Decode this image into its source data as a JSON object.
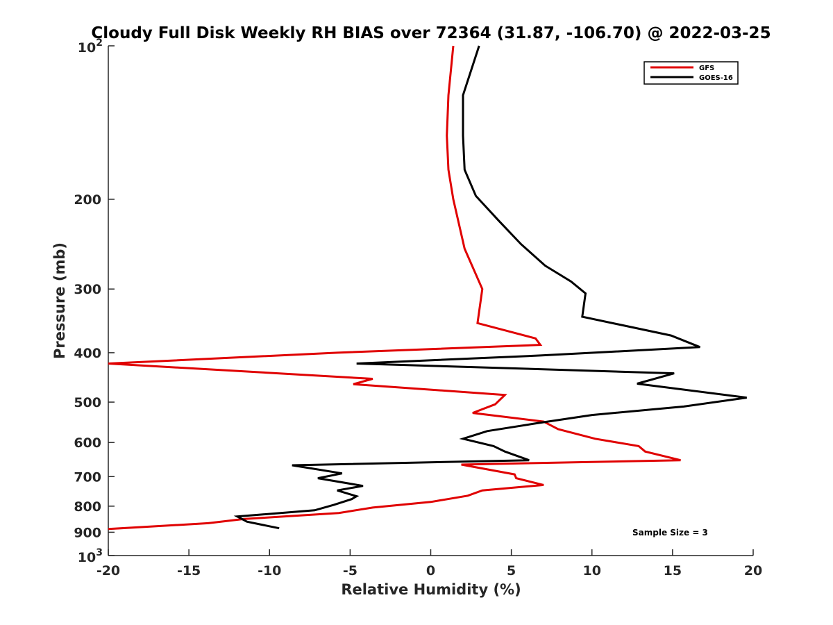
{
  "chart_data": {
    "type": "line",
    "title": "Cloudy Full Disk Weekly RH BIAS over 72364 (31.87, -106.70) @ 2022-03-25",
    "xlabel": "Relative Humidity (%)",
    "ylabel": "Pressure (mb)",
    "xlim": [
      -20,
      20
    ],
    "ylim": [
      100,
      1000
    ],
    "yscale": "log",
    "y_reversed": true,
    "x_ticks": [
      {
        "value": -20,
        "label": "-20"
      },
      {
        "value": -15,
        "label": "-15"
      },
      {
        "value": -10,
        "label": "-10"
      },
      {
        "value": -5,
        "label": "-5"
      },
      {
        "value": 0,
        "label": "0"
      },
      {
        "value": 5,
        "label": "5"
      },
      {
        "value": 10,
        "label": "10"
      },
      {
        "value": 15,
        "label": "15"
      },
      {
        "value": 20,
        "label": "20"
      }
    ],
    "y_ticks": [
      {
        "value": 100,
        "base": "10",
        "exp": "2"
      },
      {
        "value": 200,
        "label": "200"
      },
      {
        "value": 300,
        "label": "300"
      },
      {
        "value": 400,
        "label": "400"
      },
      {
        "value": 500,
        "label": "500"
      },
      {
        "value": 600,
        "label": "600"
      },
      {
        "value": 700,
        "label": "700"
      },
      {
        "value": 800,
        "label": "800"
      },
      {
        "value": 900,
        "label": "900"
      },
      {
        "value": 1000,
        "base": "10",
        "exp": "3"
      }
    ],
    "grid": false,
    "legend_position": "top-right",
    "annotation": "Sample Size = 3",
    "series": [
      {
        "name": "GFS",
        "color": "#e00000",
        "points": [
          [
            1.4,
            100
          ],
          [
            1.1,
            125
          ],
          [
            1.0,
            150
          ],
          [
            1.1,
            175
          ],
          [
            1.4,
            200
          ],
          [
            2.1,
            250
          ],
          [
            3.2,
            300
          ],
          [
            2.9,
            350
          ],
          [
            6.5,
            375
          ],
          [
            6.8,
            386
          ],
          [
            -5.8,
            400
          ],
          [
            -20.0,
            420
          ],
          [
            -3.6,
            450
          ],
          [
            -4.8,
            461
          ],
          [
            4.6,
            484
          ],
          [
            4.0,
            505
          ],
          [
            2.6,
            525
          ],
          [
            7.0,
            546
          ],
          [
            7.9,
            565
          ],
          [
            10.2,
            590
          ],
          [
            12.9,
            610
          ],
          [
            13.3,
            625
          ],
          [
            15.5,
            650
          ],
          [
            1.9,
            663
          ],
          [
            5.2,
            693
          ],
          [
            5.3,
            705
          ],
          [
            7.0,
            727
          ],
          [
            3.2,
            745
          ],
          [
            2.3,
            763
          ],
          [
            0.0,
            785
          ],
          [
            -3.6,
            805
          ],
          [
            -5.7,
            825
          ],
          [
            -11.6,
            848
          ],
          [
            -13.8,
            864
          ],
          [
            -20.0,
            887
          ]
        ]
      },
      {
        "name": "GOES-16",
        "color": "#000000",
        "points": [
          [
            3.0,
            100
          ],
          [
            2.0,
            125
          ],
          [
            2.0,
            150
          ],
          [
            2.1,
            175
          ],
          [
            2.8,
            197
          ],
          [
            4.2,
            220
          ],
          [
            5.6,
            245
          ],
          [
            7.1,
            270
          ],
          [
            8.7,
            290
          ],
          [
            9.6,
            306
          ],
          [
            9.4,
            340
          ],
          [
            14.9,
            370
          ],
          [
            16.7,
            390
          ],
          [
            6.8,
            405
          ],
          [
            -4.6,
            420
          ],
          [
            15.1,
            439
          ],
          [
            12.8,
            460
          ],
          [
            19.6,
            490
          ],
          [
            15.7,
            510
          ],
          [
            10.0,
            530
          ],
          [
            6.6,
            550
          ],
          [
            3.5,
            570
          ],
          [
            2.0,
            590
          ],
          [
            3.9,
            610
          ],
          [
            4.6,
            625
          ],
          [
            6.1,
            650
          ],
          [
            -8.6,
            665
          ],
          [
            -5.5,
            690
          ],
          [
            -7.0,
            705
          ],
          [
            -4.2,
            730
          ],
          [
            -5.8,
            745
          ],
          [
            -4.6,
            765
          ],
          [
            -4.9,
            775
          ],
          [
            -6.0,
            795
          ],
          [
            -7.2,
            815
          ],
          [
            -12.0,
            838
          ],
          [
            -11.4,
            858
          ],
          [
            -9.4,
            884
          ]
        ]
      }
    ]
  }
}
